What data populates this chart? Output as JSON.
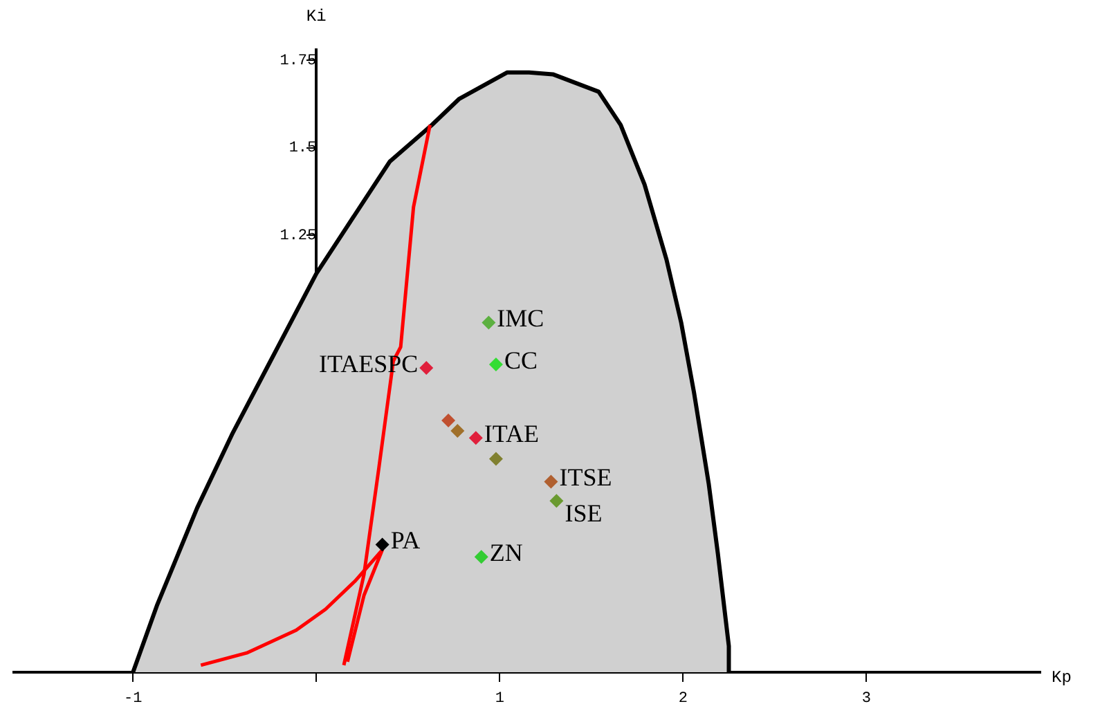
{
  "chart_data": {
    "type": "scatter",
    "xlabel": "Kp",
    "ylabel": "Ki",
    "xlim": [
      -1.65,
      3.95
    ],
    "ylim": [
      0,
      1.78
    ],
    "xticks": [
      -1,
      {
        "value": 0,
        "label": null
      },
      1,
      2,
      3
    ],
    "yticks": [
      1.25,
      1.5,
      1.75
    ],
    "grid": false,
    "legend": false,
    "marker": "diamond",
    "series": [
      {
        "type": "area",
        "marker": "none",
        "color": "#000000",
        "x": [
          -1,
          -0.87,
          -0.65,
          -0.46,
          -0.25,
          0,
          0.15,
          0.4,
          0.63,
          0.78,
          1.04,
          1.16,
          1.29,
          1.54,
          1.66,
          1.79,
          1.91,
          1.99,
          2.06,
          2.14,
          2.19,
          2.25,
          2.25
        ],
        "values": [
          0,
          0.19,
          0.47,
          0.68,
          0.89,
          1.14,
          1.26,
          1.46,
          1.565,
          1.64,
          1.715,
          1.715,
          1.71,
          1.66,
          1.565,
          1.395,
          1.18,
          1.0,
          0.8,
          0.54,
          0.34,
          0.075,
          0
        ]
      },
      {
        "type": "line",
        "marker": "none",
        "color": "#ff0000",
        "x": [
          0.15,
          0.26,
          0.34,
          0.42,
          0.46,
          0.53,
          0.62
        ],
        "values": [
          0.02,
          0.28,
          0.58,
          0.89,
          0.93,
          1.33,
          1.565
        ]
      },
      {
        "type": "line",
        "marker": "none",
        "color": "#ff0000",
        "x": [
          -0.63,
          -0.38,
          -0.11,
          0.05,
          0.21,
          0.36,
          0.26,
          0.17
        ],
        "values": [
          0.02,
          0.055,
          0.12,
          0.18,
          0.26,
          0.35,
          0.22,
          0.03
        ]
      },
      {
        "name": "IMC",
        "color": "#5cb040",
        "x": [
          0.94
        ],
        "values": [
          1.0
        ]
      },
      {
        "name": "CC",
        "color": "#33dd33",
        "x": [
          0.98
        ],
        "values": [
          0.88
        ]
      },
      {
        "name": "ITAESPC",
        "color": "#e0203c",
        "x": [
          0.6
        ],
        "values": [
          0.87
        ]
      },
      {
        "color": "#c05030",
        "x": [
          0.72
        ],
        "values": [
          0.72
        ]
      },
      {
        "color": "#a0702a",
        "x": [
          0.77
        ],
        "values": [
          0.69
        ]
      },
      {
        "name": "ITAE",
        "color": "#e0203c",
        "x": [
          0.87
        ],
        "values": [
          0.67
        ]
      },
      {
        "color": "#808030",
        "x": [
          0.98
        ],
        "values": [
          0.61
        ]
      },
      {
        "name": "ITSE",
        "color": "#b06030",
        "x": [
          1.28
        ],
        "values": [
          0.545
        ]
      },
      {
        "name": "ISE",
        "color": "#6a9a30",
        "x": [
          1.31
        ],
        "values": [
          0.49
        ]
      },
      {
        "name": "PA",
        "color": "#000000",
        "x": [
          0.36
        ],
        "values": [
          0.365
        ]
      },
      {
        "name": "ZN",
        "color": "#33cc33",
        "x": [
          0.9
        ],
        "values": [
          0.33
        ]
      }
    ]
  }
}
